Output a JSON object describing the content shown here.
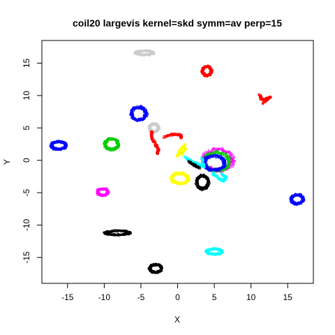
{
  "chart_data": {
    "type": "scatter",
    "title": "coil20 largevis kernel=skd symm=av perp=15",
    "xlabel": "X",
    "ylabel": "Y",
    "xlim": [
      -18.5,
      18.5
    ],
    "ylim": [
      -19,
      18.5
    ],
    "xticks": [
      -15,
      -10,
      -5,
      0,
      5,
      10,
      15
    ],
    "yticks": [
      -15,
      -10,
      -5,
      0,
      5,
      10,
      15
    ],
    "grid": false,
    "legend": "none",
    "clusters": [
      {
        "color": "#cccccc",
        "shape": "arc",
        "cx": -4.5,
        "cy": 16.6,
        "rx": 1.2,
        "ry": 0.3
      },
      {
        "color": "#ff0000",
        "shape": "ring",
        "cx": 4.0,
        "cy": 13.8,
        "rx": 0.6,
        "ry": 0.7
      },
      {
        "color": "#ff0000",
        "shape": "curve",
        "points": [
          [
            11.2,
            10.2
          ],
          [
            11.4,
            9.4
          ],
          [
            12.0,
            9.4
          ],
          [
            12.6,
            9.8
          ],
          [
            11.6,
            8.8
          ]
        ]
      },
      {
        "color": "#0000ff",
        "shape": "ring",
        "cx": -5.3,
        "cy": 7.2,
        "rx": 1.0,
        "ry": 1.0
      },
      {
        "color": "#cccccc",
        "shape": "ring",
        "cx": -3.2,
        "cy": 5.0,
        "rx": 0.6,
        "ry": 0.6
      },
      {
        "color": "#ff0000",
        "shape": "curve",
        "points": [
          [
            -3.5,
            4.5
          ],
          [
            -3.6,
            3.5
          ],
          [
            -3.0,
            2.5
          ],
          [
            -2.6,
            1.6
          ],
          [
            -2.8,
            1.0
          ]
        ]
      },
      {
        "color": "#ff0000",
        "shape": "curve",
        "points": [
          [
            -1.8,
            3.6
          ],
          [
            -0.6,
            4.0
          ],
          [
            0.4,
            3.9
          ],
          [
            0.5,
            3.4
          ]
        ]
      },
      {
        "color": "#0000ff",
        "shape": "ring",
        "cx": -16.2,
        "cy": 2.3,
        "rx": 1.0,
        "ry": 0.6
      },
      {
        "color": "#00cc00",
        "shape": "ring",
        "cx": -9.0,
        "cy": 2.5,
        "rx": 0.9,
        "ry": 0.8
      },
      {
        "color": "#ffff00",
        "shape": "curve",
        "points": [
          [
            0.0,
            0.6
          ],
          [
            0.4,
            1.6
          ],
          [
            0.9,
            2.4
          ],
          [
            1.0,
            1.7
          ],
          [
            0.6,
            0.8
          ]
        ]
      },
      {
        "color": "#ff00ff",
        "shape": "ring",
        "cx": 5.5,
        "cy": 0.0,
        "rx": 2.0,
        "ry": 1.6
      },
      {
        "color": "#00cc00",
        "shape": "ring",
        "cx": 5.3,
        "cy": -0.2,
        "rx": 1.7,
        "ry": 1.4
      },
      {
        "color": "#0000ff",
        "shape": "ring",
        "cx": 5.0,
        "cy": -0.4,
        "rx": 1.4,
        "ry": 1.1
      },
      {
        "color": "#00ffff",
        "shape": "curve",
        "points": [
          [
            1.0,
            0.5
          ],
          [
            2.0,
            -0.2
          ],
          [
            3.0,
            -0.7
          ],
          [
            3.6,
            -1.0
          ],
          [
            3.3,
            0.3
          ]
        ]
      },
      {
        "color": "#00ffff",
        "shape": "curve",
        "points": [
          [
            4.8,
            -2.0
          ],
          [
            5.6,
            -2.8
          ],
          [
            6.3,
            -3.2
          ],
          [
            6.6,
            -2.6
          ],
          [
            6.0,
            -2.1
          ]
        ]
      },
      {
        "color": "#000000",
        "shape": "curve",
        "points": [
          [
            1.5,
            -0.2
          ],
          [
            2.4,
            -0.8
          ],
          [
            3.0,
            -1.2
          ]
        ]
      },
      {
        "color": "#ffff00",
        "shape": "ring",
        "cx": 0.3,
        "cy": -2.8,
        "rx": 1.1,
        "ry": 0.8
      },
      {
        "color": "#000000",
        "shape": "ring",
        "cx": 3.4,
        "cy": -3.4,
        "rx": 0.8,
        "ry": 1.0
      },
      {
        "color": "#ff00ff",
        "shape": "ring",
        "cx": -10.2,
        "cy": -4.9,
        "rx": 0.7,
        "ry": 0.5
      },
      {
        "color": "#0000ff",
        "shape": "ring",
        "cx": 16.3,
        "cy": -6.0,
        "rx": 0.8,
        "ry": 0.7
      },
      {
        "color": "#000000",
        "shape": "arc",
        "cx": -8.2,
        "cy": -11.2,
        "rx": 1.6,
        "ry": 0.3
      },
      {
        "color": "#00ffff",
        "shape": "ring",
        "cx": 5.0,
        "cy": -14.1,
        "rx": 1.0,
        "ry": 0.4
      },
      {
        "color": "#000000",
        "shape": "ring",
        "cx": -3.0,
        "cy": -16.7,
        "rx": 0.8,
        "ry": 0.6
      }
    ]
  }
}
